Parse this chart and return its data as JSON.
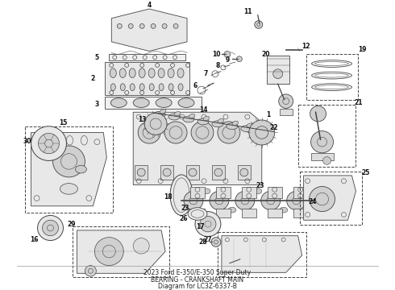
{
  "title": "2023 Ford E-350/E-350 Super Duty\nBEARING - CRANKSHAFT MAIN\nDiagram for LC3Z-6337-B",
  "bg_color": "#ffffff",
  "fig_width": 4.9,
  "fig_height": 3.6,
  "dpi": 100,
  "line_color": "#444444",
  "label_color": "#111111",
  "label_fontsize": 5.5
}
